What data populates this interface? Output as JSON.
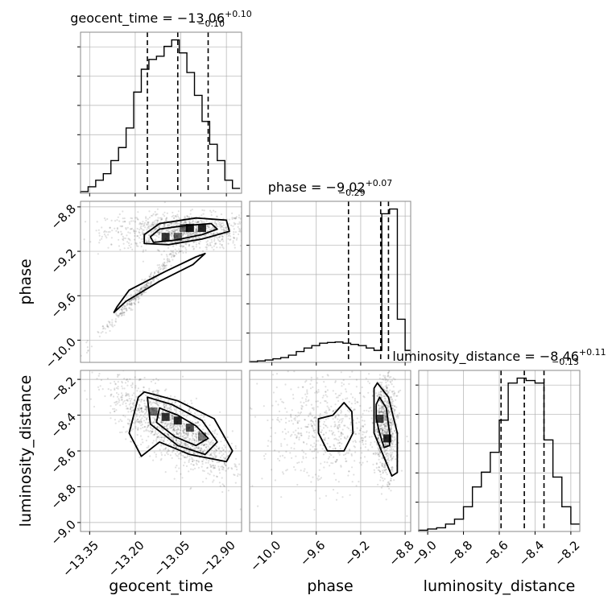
{
  "chart_data": [
    {
      "type": "histogram",
      "panel": "geocent_time-hist",
      "title": {
        "text": "geocent_time = −13.06",
        "sup": "+0.10",
        "sub": "−0.10"
      },
      "xlim": [
        -13.38,
        -12.85
      ],
      "bin_edges": [
        -13.38,
        -13.355,
        -13.33,
        -13.305,
        -13.28,
        -13.255,
        -13.23,
        -13.205,
        -13.18,
        -13.155,
        -13.13,
        -13.105,
        -13.08,
        -13.055,
        -13.03,
        -13.005,
        -12.98,
        -12.955,
        -12.93,
        -12.905,
        -12.88,
        -12.855
      ],
      "counts": [
        0.5,
        2,
        4,
        6,
        10,
        14,
        20,
        31,
        38,
        41,
        42,
        45,
        47,
        43,
        37,
        30,
        22,
        15,
        10,
        4,
        1.5
      ],
      "quantiles": [
        -13.16,
        -13.06,
        -12.96
      ],
      "xticks": [
        -13.35,
        -13.2,
        -13.05,
        -12.9
      ]
    },
    {
      "type": "histogram",
      "panel": "phase-hist",
      "title": {
        "text": "phase = −9.02",
        "sup": "+0.07",
        "sub": "−0.29"
      },
      "xlim": [
        -10.2,
        -8.75
      ],
      "bin_edges": [
        -10.2,
        -10.13,
        -10.06,
        -9.99,
        -9.92,
        -9.85,
        -9.78,
        -9.71,
        -9.64,
        -9.57,
        -9.5,
        -9.43,
        -9.36,
        -9.29,
        -9.22,
        -9.15,
        -9.08,
        -9.01,
        -8.94,
        -8.87,
        -8.8,
        -8.75
      ],
      "counts": [
        0.3,
        0.6,
        1,
        1.5,
        2,
        3,
        4.5,
        6,
        7,
        8,
        8.3,
        8.5,
        8,
        7.5,
        7,
        6,
        5,
        62,
        64,
        18,
        5
      ],
      "quantiles": [
        -9.31,
        -9.02,
        -8.95
      ],
      "xticks": [
        -10.0,
        -9.6,
        -9.2,
        -8.8
      ]
    },
    {
      "type": "histogram",
      "panel": "luminosity_distance-hist",
      "title": {
        "text": "luminosity_distance = −8.46",
        "sup": "+0.11",
        "sub": "−0.13"
      },
      "xlim": [
        -9.05,
        -8.15
      ],
      "bin_edges": [
        -9.05,
        -9.0,
        -8.95,
        -8.9,
        -8.85,
        -8.8,
        -8.75,
        -8.7,
        -8.65,
        -8.6,
        -8.55,
        -8.5,
        -8.45,
        -8.4,
        -8.35,
        -8.3,
        -8.25,
        -8.2,
        -8.15
      ],
      "counts": [
        0.5,
        1,
        1.5,
        3,
        5,
        10,
        18,
        24,
        32,
        45,
        60,
        62,
        61,
        60,
        37,
        22,
        10,
        3
      ],
      "quantiles": [
        -8.59,
        -8.46,
        -8.35
      ],
      "xticks": [
        -9.0,
        -8.8,
        -8.6,
        -8.4,
        -8.2
      ]
    },
    {
      "type": "scatter",
      "panel": "phase-vs-geocent_time",
      "x_name": "geocent_time",
      "y_name": "phase",
      "xlim": [
        -13.38,
        -12.85
      ],
      "ylim": [
        -10.2,
        -8.75
      ],
      "clusters": [
        {
          "center": [
            -13.05,
            -9.02
          ],
          "spread": [
            0.12,
            0.08
          ],
          "weight": 0.75
        },
        {
          "center": [
            -13.18,
            -9.55
          ],
          "spread": [
            0.06,
            0.25
          ],
          "weight": 0.25
        }
      ],
      "density_cells": [
        {
          "x": -13.1,
          "y": -9.07,
          "level": 0.8
        },
        {
          "x": -13.06,
          "y": -9.07,
          "level": 0.6
        },
        {
          "x": -13.02,
          "y": -8.99,
          "level": 0.9
        },
        {
          "x": -12.98,
          "y": -8.99,
          "level": 0.85
        },
        {
          "x": -13.04,
          "y": -8.99,
          "level": 0.55
        }
      ],
      "contours": [
        [
          [
            -13.15,
            -9.07
          ],
          [
            -13.12,
            -9.0
          ],
          [
            -13.04,
            -8.97
          ],
          [
            -12.95,
            -8.95
          ],
          [
            -12.93,
            -9.0
          ],
          [
            -12.98,
            -9.05
          ],
          [
            -13.07,
            -9.1
          ],
          [
            -13.14,
            -9.12
          ]
        ],
        [
          [
            -13.17,
            -9.05
          ],
          [
            -13.12,
            -8.95
          ],
          [
            -13.0,
            -8.9
          ],
          [
            -12.9,
            -8.92
          ],
          [
            -12.89,
            -9.02
          ],
          [
            -12.98,
            -9.09
          ],
          [
            -13.09,
            -9.14
          ],
          [
            -13.17,
            -9.13
          ]
        ],
        [
          [
            -13.26,
            -9.7
          ],
          [
            -13.22,
            -9.55
          ],
          [
            -13.1,
            -9.38
          ],
          [
            -13.0,
            -9.25
          ],
          [
            -12.97,
            -9.22
          ],
          [
            -13.01,
            -9.32
          ],
          [
            -13.12,
            -9.47
          ],
          [
            -13.23,
            -9.65
          ],
          [
            -13.27,
            -9.75
          ]
        ]
      ],
      "yticks": [
        -10.0,
        -9.6,
        -9.2,
        -8.8
      ],
      "ylabel": "phase"
    },
    {
      "type": "scatter",
      "panel": "luminosity_distance-vs-geocent_time",
      "x_name": "geocent_time",
      "y_name": "luminosity_distance",
      "xlim": [
        -13.38,
        -12.85
      ],
      "ylim": [
        -9.05,
        -8.15
      ],
      "clusters": [
        {
          "center": [
            -13.08,
            -8.47
          ],
          "spread": [
            0.1,
            0.13
          ],
          "weight": 1.0
        }
      ],
      "density_cells": [
        {
          "x": -13.14,
          "y": -8.38,
          "level": 0.55
        },
        {
          "x": -13.1,
          "y": -8.41,
          "level": 0.8
        },
        {
          "x": -13.06,
          "y": -8.43,
          "level": 0.85
        },
        {
          "x": -13.02,
          "y": -8.47,
          "level": 0.7
        },
        {
          "x": -12.98,
          "y": -8.52,
          "level": 0.5
        }
      ],
      "contours": [
        [
          [
            -13.12,
            -8.36
          ],
          [
            -13.06,
            -8.4
          ],
          [
            -13.0,
            -8.46
          ],
          [
            -12.96,
            -8.53
          ],
          [
            -13.0,
            -8.57
          ],
          [
            -13.07,
            -8.52
          ],
          [
            -13.13,
            -8.44
          ]
        ],
        [
          [
            -13.16,
            -8.3
          ],
          [
            -13.08,
            -8.34
          ],
          [
            -12.98,
            -8.43
          ],
          [
            -12.93,
            -8.55
          ],
          [
            -12.97,
            -8.62
          ],
          [
            -13.06,
            -8.57
          ],
          [
            -13.15,
            -8.45
          ]
        ],
        [
          [
            -13.19,
            -8.3
          ],
          [
            -13.17,
            -8.27
          ],
          [
            -13.06,
            -8.32
          ],
          [
            -12.94,
            -8.42
          ],
          [
            -12.88,
            -8.6
          ],
          [
            -12.9,
            -8.66
          ],
          [
            -13.02,
            -8.62
          ],
          [
            -13.12,
            -8.55
          ],
          [
            -13.18,
            -8.63
          ],
          [
            -13.22,
            -8.5
          ]
        ]
      ],
      "yticks": [
        -9.0,
        -8.8,
        -8.6,
        -8.4,
        -8.2
      ],
      "xticks": [
        -13.35,
        -13.2,
        -13.05,
        -12.9
      ],
      "ylabel": "luminosity_distance",
      "xlabel": "geocent_time"
    },
    {
      "type": "scatter",
      "panel": "luminosity_distance-vs-phase",
      "x_name": "phase",
      "y_name": "luminosity_distance",
      "xlim": [
        -10.2,
        -8.75
      ],
      "ylim": [
        -9.05,
        -8.15
      ],
      "clusters": [
        {
          "center": [
            -9.5,
            -8.48
          ],
          "spread": [
            0.28,
            0.16
          ],
          "weight": 0.45
        },
        {
          "center": [
            -8.98,
            -8.46
          ],
          "spread": [
            0.05,
            0.14
          ],
          "weight": 0.55
        }
      ],
      "density_cells": [
        {
          "x": -9.03,
          "y": -8.42,
          "level": 0.75
        },
        {
          "x": -8.96,
          "y": -8.53,
          "level": 0.85
        }
      ],
      "contours": [
        [
          [
            -9.45,
            -8.4
          ],
          [
            -9.35,
            -8.33
          ],
          [
            -9.28,
            -8.38
          ],
          [
            -9.27,
            -8.5
          ],
          [
            -9.35,
            -8.6
          ],
          [
            -9.5,
            -8.6
          ],
          [
            -9.58,
            -8.5
          ],
          [
            -9.58,
            -8.42
          ]
        ],
        [
          [
            -9.06,
            -8.34
          ],
          [
            -9.03,
            -8.3
          ],
          [
            -8.97,
            -8.36
          ],
          [
            -8.94,
            -8.5
          ],
          [
            -8.94,
            -8.57
          ],
          [
            -8.99,
            -8.58
          ],
          [
            -9.03,
            -8.5
          ],
          [
            -9.06,
            -8.42
          ]
        ],
        [
          [
            -9.08,
            -8.25
          ],
          [
            -9.05,
            -8.22
          ],
          [
            -8.95,
            -8.3
          ],
          [
            -8.87,
            -8.5
          ],
          [
            -8.87,
            -8.72
          ],
          [
            -8.92,
            -8.74
          ],
          [
            -8.98,
            -8.65
          ],
          [
            -9.08,
            -8.5
          ]
        ]
      ],
      "xticks": [
        -10.0,
        -9.6,
        -9.2,
        -8.8
      ],
      "xlabel": "phase"
    }
  ]
}
